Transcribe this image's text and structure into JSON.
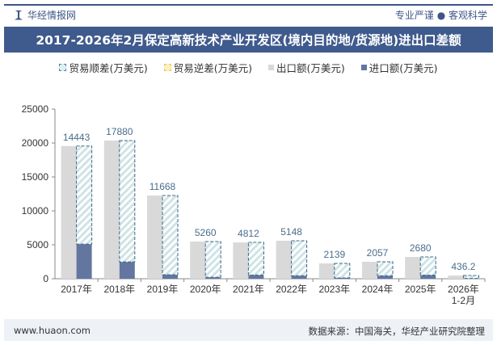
{
  "header": {
    "brand": "华经情报网",
    "slogan": "专业严谨 ● 客观科学"
  },
  "title": "2017-2026年2月保定高新技术产业开发区(境内目的地/货源地)进出口差额",
  "footer": {
    "website": "www.huaon.com",
    "source": "数据来源：中国海关，华经产业研究院整理"
  },
  "colors": {
    "surplus": "#5b7fa8",
    "deficit": "#e8c94a",
    "export": "#d9d9d9",
    "import": "#6276a0",
    "label": "#4a6d8c"
  },
  "chart_data": {
    "type": "bar",
    "categories": [
      "2017年",
      "2018年",
      "2019年",
      "2020年",
      "2021年",
      "2022年",
      "2023年",
      "2024年",
      "2025年",
      "2026年\n1-2月"
    ],
    "ylim": [
      0,
      25000
    ],
    "yticks": [
      0,
      5000,
      10000,
      15000,
      20000,
      25000
    ],
    "series": [
      {
        "name": "贸易顺差(万美元)",
        "values": [
          14443,
          17880,
          11668,
          5260,
          4812,
          5148,
          2139,
          2057,
          2680,
          436.2
        ]
      },
      {
        "name": "贸易逆差(万美元)",
        "values": [
          0,
          0,
          0,
          0,
          0,
          0,
          0,
          0,
          0,
          0
        ]
      },
      {
        "name": "出口额(万美元)",
        "values": [
          19550,
          20360,
          12260,
          5480,
          5360,
          5600,
          2260,
          2500,
          3210,
          476
        ]
      },
      {
        "name": "进口额(万美元)",
        "values": [
          5107,
          2480,
          592,
          220,
          548,
          452,
          121,
          443,
          530,
          40
        ]
      }
    ],
    "data_labels": [
      "14443",
      "17880",
      "11668",
      "5260",
      "4812",
      "5148",
      "2139",
      "2057",
      "2680",
      "436.2"
    ],
    "legend_position": "top",
    "grid": false
  }
}
